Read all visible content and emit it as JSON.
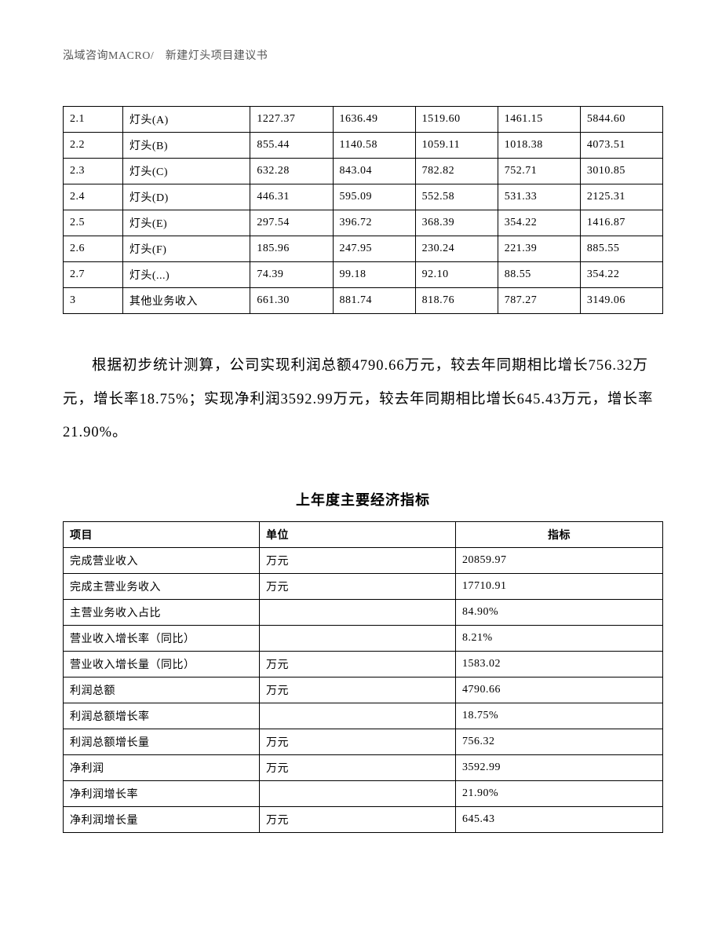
{
  "header": {
    "text": "泓域咨询MACRO/　新建灯头项目建议书"
  },
  "table1": {
    "rows": [
      {
        "idx": "2.1",
        "name": "灯头(A)",
        "v1": "1227.37",
        "v2": "1636.49",
        "v3": "1519.60",
        "v4": "1461.15",
        "v5": "5844.60"
      },
      {
        "idx": "2.2",
        "name": "灯头(B)",
        "v1": "855.44",
        "v2": "1140.58",
        "v3": "1059.11",
        "v4": "1018.38",
        "v5": "4073.51"
      },
      {
        "idx": "2.3",
        "name": "灯头(C)",
        "v1": "632.28",
        "v2": "843.04",
        "v3": "782.82",
        "v4": "752.71",
        "v5": "3010.85"
      },
      {
        "idx": "2.4",
        "name": "灯头(D)",
        "v1": "446.31",
        "v2": "595.09",
        "v3": "552.58",
        "v4": "531.33",
        "v5": "2125.31"
      },
      {
        "idx": "2.5",
        "name": "灯头(E)",
        "v1": "297.54",
        "v2": "396.72",
        "v3": "368.39",
        "v4": "354.22",
        "v5": "1416.87"
      },
      {
        "idx": "2.6",
        "name": "灯头(F)",
        "v1": "185.96",
        "v2": "247.95",
        "v3": "230.24",
        "v4": "221.39",
        "v5": "885.55"
      },
      {
        "idx": "2.7",
        "name": "灯头(...)",
        "v1": "74.39",
        "v2": "99.18",
        "v3": "92.10",
        "v4": "88.55",
        "v5": "354.22"
      },
      {
        "idx": "3",
        "name": "其他业务收入",
        "v1": "661.30",
        "v2": "881.74",
        "v3": "818.76",
        "v4": "787.27",
        "v5": "3149.06"
      }
    ]
  },
  "paragraph": {
    "text": "根据初步统计测算，公司实现利润总额4790.66万元，较去年同期相比增长756.32万元，增长率18.75%；实现净利润3592.99万元，较去年同期相比增长645.43万元，增长率21.90%。"
  },
  "table2": {
    "title": "上年度主要经济指标",
    "header": {
      "item": "项目",
      "unit": "单位",
      "indicator": "指标"
    },
    "rows": [
      {
        "item": "完成营业收入",
        "unit": "万元",
        "indicator": "20859.97"
      },
      {
        "item": "完成主营业务收入",
        "unit": "万元",
        "indicator": "17710.91"
      },
      {
        "item": "主营业务收入占比",
        "unit": "",
        "indicator": "84.90%"
      },
      {
        "item": "营业收入增长率（同比）",
        "unit": "",
        "indicator": "8.21%"
      },
      {
        "item": "营业收入增长量（同比）",
        "unit": "万元",
        "indicator": "1583.02"
      },
      {
        "item": "利润总额",
        "unit": "万元",
        "indicator": "4790.66"
      },
      {
        "item": "利润总额增长率",
        "unit": "",
        "indicator": "18.75%"
      },
      {
        "item": "利润总额增长量",
        "unit": "万元",
        "indicator": "756.32"
      },
      {
        "item": "净利润",
        "unit": "万元",
        "indicator": "3592.99"
      },
      {
        "item": "净利润增长率",
        "unit": "",
        "indicator": "21.90%"
      },
      {
        "item": "净利润增长量",
        "unit": "万元",
        "indicator": "645.43"
      }
    ]
  }
}
